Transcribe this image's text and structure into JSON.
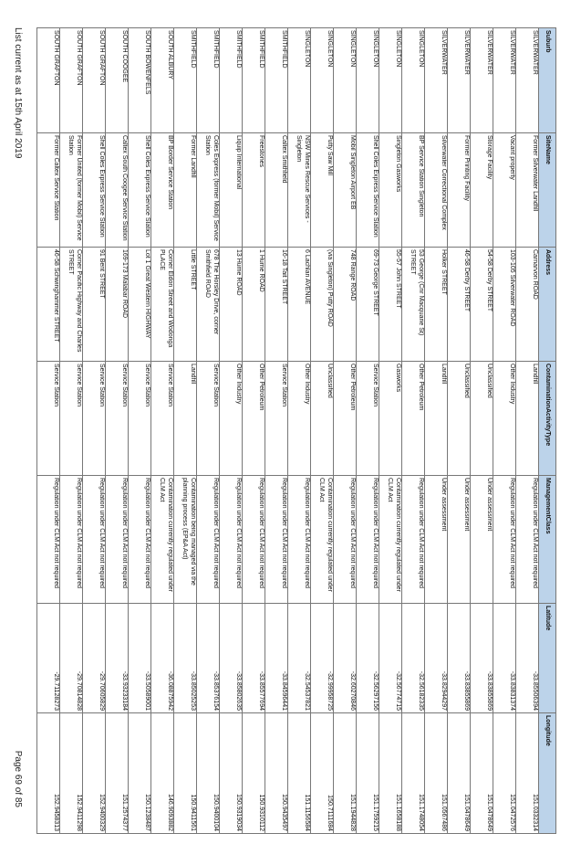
{
  "table": {
    "header": [
      "Suburb",
      "SiteName",
      "Address",
      "ContaminationActivityType",
      "ManagementClass",
      "Latitude",
      "Longitude"
    ],
    "rows": [
      [
        "SILVERWATER",
        "Former Silverwater Landfill",
        "Carnarvon ROAD",
        "Landfill",
        "Regulation under CLM Act not required",
        "-33.85506394",
        "151.0332314"
      ],
      [
        "SILVERWATER",
        "Vacant property",
        "103-105 Silverwater ROAD",
        "Other Industry",
        "Regulation under CLM Act not required",
        "-33.83831374",
        "151.0472576"
      ],
      [
        "SILVERWATER",
        "Storage Facility",
        "54-58 Derby STREET",
        "Unclassified",
        "Under assessment",
        "-33.83855869",
        "151.0478649"
      ],
      [
        "SILVERWATER",
        "Former Printing Facility",
        "46-58 Derby STREET",
        "Unclassified",
        "Under assessment",
        "-33.83855869",
        "151.0478649"
      ],
      [
        "SILVERWATER",
        "Silverwater Correctional Complex",
        "Holker STREET",
        "Landfill",
        "Under assessment",
        "-33.82944297",
        "151.0567486"
      ],
      [
        "SINGLETON",
        "BP Service Station Singleton",
        "53 George (Cnr Macquarie St) STREET",
        "Other Petroleum",
        "Regulation under CLM Act not required",
        "-32.56182335",
        "151.1748054"
      ],
      [
        "SINGLETON",
        "Singleton Gasworks",
        "55-57 John STREET",
        "Gasworks",
        "Contamination currently regulated under CLM Act",
        "-32.56774715",
        "151.1658188"
      ],
      [
        "SINGLETON",
        "Shell Coles Express Service Station",
        "69-73 George STREET",
        "Service Station",
        "Regulation under CLM Act not required",
        "-32.56297156",
        "151.1759215"
      ],
      [
        "SINGLETON",
        "Mobil Singleton Airport EB",
        "748 Range ROAD",
        "Other Petroleum",
        "Regulation under CLM Act not required",
        "-32.60270846",
        "151.1944828"
      ],
      [
        "SINGLETON",
        "Putty Saw Mill",
        "(via Singleton) Putty ROAD",
        "Unclassified",
        "Contamination currently regulated under CLM Act",
        "-32.99958725",
        "150.7111684"
      ],
      [
        "SINGLETON",
        "NSW Mines Rescue Services - Singleton",
        "6 Lachlan AVENUE",
        "Other Industry",
        "Regulation under CLM Act not required",
        "-32.54537821",
        "151.1156584"
      ],
      [
        "SMITHFIELD",
        "Caltex Smithfield",
        "16-18 Tait STREET",
        "Service Station",
        "Regulation under CLM Act not required",
        "-33.84596441",
        "150.9435497"
      ],
      [
        "SMITHFIELD",
        "Freestones",
        "1 Hume ROAD",
        "Other Petroleum",
        "Regulation under CLM Act not required",
        "-33.85577694",
        "150.9310112"
      ],
      [
        "SMITHFIELD",
        "Liquip International",
        "13 Hume ROAD",
        "Other Industry",
        "Regulation under CLM Act not required",
        "-33.85802635",
        "150.9319034"
      ],
      [
        "SMITHFIELD",
        "Coles Express (former Mobil) Service Station",
        "678 The Horsley Drive, corner Smithfield ROAD",
        "Service Station",
        "Regulation under CLM Act not required",
        "-33.85376154",
        "150.9400104"
      ],
      [
        "SMITHFIELD",
        "Former Landfill",
        "Little STREET",
        "Landfill",
        "Contamination being managed via the planning process (EP&A Act)",
        "-33.85025253",
        "150.9411561"
      ],
      [
        "SOUTH ALBURY",
        "BP Border Service Station",
        "Corner Eldon Street and Wodonga PLACE",
        "Service Station",
        "Contamination currently regulated under CLM Act",
        "-36.08875942",
        "146.9093882"
      ],
      [
        "SOUTH BOWENFELS",
        "Shell Coles Express Service Station",
        "Lot 1 Great Western HIGHWAY",
        "Service Station",
        "Regulation under CLM Act not required",
        "-33.50589001",
        "150.1238487"
      ],
      [
        "SOUTH COOGEE",
        "Caltex South Coogee Service Station",
        "169-173 Malabar ROAD",
        "Service Station",
        "Regulation under CLM Act not required",
        "-33.93233184",
        "151.2574377"
      ],
      [
        "SOUTH GRAFTON",
        "Shell Coles Express Service Station",
        "91 Bent STREET",
        "Service Station",
        "Regulation under CLM Act not required",
        "-29.70605829",
        "152.9400329"
      ],
      [
        "SOUTH GRAFTON",
        "Former United (former Mobil) Service Station",
        "Corner Pacific Highway and Charles STREET",
        "Service Station",
        "Regulation under CLM Act not required",
        "-29.70814828",
        "152.9411298"
      ],
      [
        "SOUTH GRAFTON",
        "Former Caltex Service Station",
        "46-58 Schwinghammer STREET",
        "Service Station",
        "Regulation under CLM Act not required",
        "-29.71128273",
        "152.9458313"
      ]
    ]
  },
  "footer": {
    "left": "List current as at 15th April 2019",
    "right": "Page 69 of 85"
  }
}
